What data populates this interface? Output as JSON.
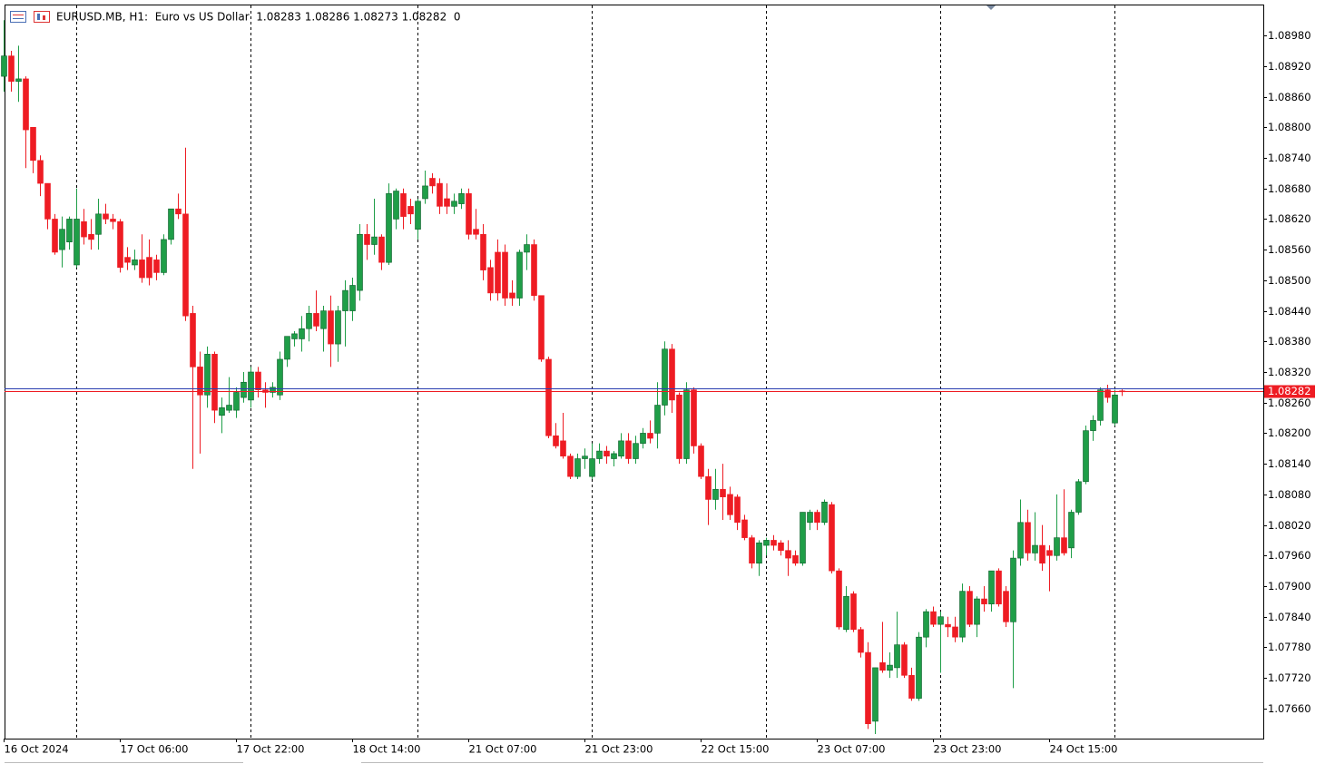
{
  "chart_data": {
    "type": "candlestick",
    "title": "EURUSD.MB, H1:  Euro vs US Dollar  1.08283 1.08286 1.08273 1.08282  0",
    "up_color": "#1f9e48",
    "down_color": "#ee1c23",
    "categories": [
      "16 Oct 2024",
      null,
      null,
      null,
      null,
      null,
      null,
      null,
      null,
      null,
      null,
      null,
      null,
      null,
      null,
      null,
      "17 Oct 06:00",
      null,
      null,
      null,
      null,
      null,
      null,
      null,
      null,
      null,
      null,
      null,
      null,
      null,
      null,
      null,
      "17 Oct 22:00",
      null,
      null,
      null,
      null,
      null,
      null,
      null,
      null,
      null,
      null,
      null,
      null,
      null,
      null,
      null,
      "18 Oct 14:00",
      null,
      null,
      null,
      null,
      null,
      null,
      null,
      null,
      null,
      null,
      null,
      null,
      null,
      null,
      null,
      "21 Oct 07:00",
      null,
      null,
      null,
      null,
      null,
      null,
      null,
      null,
      null,
      null,
      null,
      null,
      null,
      null,
      null,
      "21 Oct 23:00",
      null,
      null,
      null,
      null,
      null,
      null,
      null,
      null,
      null,
      null,
      null,
      null,
      null,
      null,
      null,
      "22 Oct 15:00",
      null,
      null,
      null,
      null,
      null,
      null,
      null,
      null,
      null,
      null,
      null,
      null,
      null,
      null,
      null,
      "23 Oct 07:00",
      null,
      null,
      null,
      null,
      null,
      null,
      null,
      null,
      null,
      null,
      null,
      null,
      null,
      null,
      null,
      "23 Oct 23:00",
      null,
      null,
      null,
      null,
      null,
      null,
      null,
      null,
      null,
      null,
      null,
      null,
      null,
      null,
      null,
      "24 Oct 15:00",
      null,
      null,
      null,
      null,
      null,
      null,
      null,
      null,
      null,
      null
    ],
    "open": [
      1.089,
      1.0894,
      1.0889,
      1.08895,
      1.088,
      1.08735,
      1.0869,
      1.0862,
      1.0856,
      1.08575,
      1.0853,
      1.08615,
      1.0859,
      1.0859,
      1.0863,
      1.0862,
      1.08615,
      1.08545,
      1.0853,
      1.0854,
      1.08545,
      1.0854,
      1.08515,
      1.0858,
      1.0864,
      1.0863,
      1.08435,
      1.0833,
      1.08275,
      1.08355,
      1.08235,
      1.08245,
      1.08245,
      1.0827,
      1.08265,
      1.0832,
      1.08285,
      1.0828,
      1.08275,
      1.08345,
      1.08385,
      1.08385,
      1.08405,
      1.08435,
      1.08405,
      1.0844,
      1.08375,
      1.0844,
      1.0844,
      1.0848,
      1.0859,
      1.0857,
      1.08585,
      1.08535,
      1.0862,
      1.0867,
      1.08645,
      1.086,
      1.0866,
      1.087,
      1.0869,
      1.0866,
      1.08645,
      1.0865,
      1.0867,
      1.086,
      1.0859,
      1.08525,
      1.08555,
      1.08555,
      1.08475,
      1.08465,
      1.08555,
      1.0857,
      1.0847,
      1.08345,
      1.08195,
      1.08185,
      1.08155,
      1.08115,
      1.0815,
      1.08115,
      1.0815,
      1.08165,
      1.0815,
      1.08155,
      1.08185,
      1.0815,
      1.0818,
      1.082,
      1.082,
      1.08255,
      1.08365,
      1.08275,
      1.0815,
      1.08285,
      1.08175,
      1.08115,
      1.0807,
      1.0809,
      1.0808,
      1.08075,
      1.0803,
      1.07995,
      1.07945,
      1.0798,
      1.0799,
      1.07985,
      1.0797,
      1.0796,
      1.07945,
      1.08025,
      1.08045,
      1.08025,
      1.0806,
      1.0793,
      1.07815,
      1.07885,
      1.07815,
      1.0777,
      1.07635,
      1.0775,
      1.07735,
      1.0774,
      1.07785,
      1.07725,
      1.0768,
      1.078,
      1.0785,
      1.07825,
      1.07825,
      1.0782,
      1.078,
      1.0789,
      1.07825,
      1.07875,
      1.07865,
      1.0793,
      1.0789,
      1.0783,
      1.07955,
      1.08025,
      1.07965,
      1.0798,
      1.0797,
      1.0796,
      1.07995,
      1.07975,
      1.08045,
      1.08105,
      1.08205,
      1.08225,
      1.08285,
      1.0822,
      1.08283
    ],
    "high": [
      1.0901,
      1.0895,
      1.0896,
      1.089,
      1.088,
      1.08745,
      1.0869,
      1.0863,
      1.08625,
      1.08625,
      1.0868,
      1.0864,
      1.0862,
      1.0866,
      1.0865,
      1.0863,
      1.0862,
      1.08565,
      1.0856,
      1.0859,
      1.0858,
      1.0855,
      1.0859,
      1.0864,
      1.0867,
      1.0876,
      1.0845,
      1.0836,
      1.0837,
      1.0836,
      1.0827,
      1.0831,
      1.0829,
      1.0832,
      1.0833,
      1.0833,
      1.083,
      1.083,
      1.0836,
      1.0839,
      1.084,
      1.0843,
      1.0845,
      1.0848,
      1.0845,
      1.0847,
      1.0845,
      1.085,
      1.08505,
      1.0861,
      1.0861,
      1.0866,
      1.0859,
      1.0869,
      1.0868,
      1.0868,
      1.0866,
      1.0866,
      1.08715,
      1.0871,
      1.087,
      1.0869,
      1.0867,
      1.0868,
      1.0868,
      1.0864,
      1.0861,
      1.0854,
      1.0858,
      1.0857,
      1.085,
      1.0856,
      1.0859,
      1.0858,
      1.0847,
      1.0835,
      1.0822,
      1.0824,
      1.0816,
      1.0816,
      1.0817,
      1.0818,
      1.0818,
      1.08175,
      1.08165,
      1.082,
      1.082,
      1.08195,
      1.0821,
      1.08225,
      1.083,
      1.0838,
      1.08375,
      1.0828,
      1.083,
      1.0829,
      1.0818,
      1.0813,
      1.0813,
      1.0814,
      1.08095,
      1.0808,
      1.0804,
      1.08,
      1.0799,
      1.07995,
      1.08,
      1.0799,
      1.0799,
      1.0797,
      1.08045,
      1.0805,
      1.0805,
      1.0807,
      1.08065,
      1.07935,
      1.079,
      1.0789,
      1.0782,
      1.0779,
      1.0774,
      1.0783,
      1.0777,
      1.0785,
      1.0779,
      1.0774,
      1.0781,
      1.07855,
      1.0786,
      1.0785,
      1.0784,
      1.0784,
      1.07905,
      1.079,
      1.0788,
      1.079,
      1.0793,
      1.07935,
      1.079,
      1.0797,
      1.0807,
      1.0805,
      1.08045,
      1.0802,
      1.0798,
      1.0808,
      1.0809,
      1.0805,
      1.0811,
      1.08215,
      1.08235,
      1.0829,
      1.08295,
      1.08285,
      1.08286
    ],
    "low": [
      1.0887,
      1.0887,
      1.0885,
      1.0872,
      1.0871,
      1.08665,
      1.086,
      1.0855,
      1.08525,
      1.0856,
      1.08525,
      1.0857,
      1.0856,
      1.0856,
      1.0861,
      1.086,
      1.08515,
      1.0852,
      1.0852,
      1.08495,
      1.0849,
      1.085,
      1.0851,
      1.0857,
      1.0862,
      1.0842,
      1.0813,
      1.0816,
      1.0825,
      1.0822,
      1.082,
      1.0824,
      1.0823,
      1.0826,
      1.0825,
      1.0827,
      1.0825,
      1.0827,
      1.08265,
      1.0833,
      1.0837,
      1.0836,
      1.0838,
      1.084,
      1.0836,
      1.0833,
      1.0834,
      1.0837,
      1.0842,
      1.0846,
      1.0854,
      1.0855,
      1.0852,
      1.0853,
      1.086,
      1.086,
      1.0861,
      1.0858,
      1.0865,
      1.0867,
      1.0863,
      1.0863,
      1.0863,
      1.0864,
      1.0858,
      1.0858,
      1.085,
      1.0846,
      1.0846,
      1.0845,
      1.0845,
      1.0845,
      1.0852,
      1.0846,
      1.0834,
      1.0819,
      1.0817,
      1.0815,
      1.0811,
      1.0811,
      1.0813,
      1.0811,
      1.0814,
      1.0814,
      1.08135,
      1.0815,
      1.0814,
      1.0814,
      1.0817,
      1.0818,
      1.0817,
      1.08235,
      1.0824,
      1.0814,
      1.0814,
      1.0816,
      1.0811,
      1.0802,
      1.0805,
      1.0803,
      1.0803,
      1.0801,
      1.0799,
      1.07935,
      1.0792,
      1.0796,
      1.0797,
      1.0796,
      1.0792,
      1.0794,
      1.0794,
      1.0801,
      1.0801,
      1.0802,
      1.07925,
      1.07815,
      1.0781,
      1.0781,
      1.0776,
      1.0762,
      1.0761,
      1.0773,
      1.0772,
      1.0772,
      1.0772,
      1.07675,
      1.07675,
      1.0778,
      1.0782,
      1.0773,
      1.078,
      1.0779,
      1.0779,
      1.0782,
      1.078,
      1.0785,
      1.0785,
      1.0786,
      1.0782,
      1.077,
      1.0794,
      1.0795,
      1.0795,
      1.0793,
      1.0789,
      1.0795,
      1.0796,
      1.07955,
      1.0804,
      1.081,
      1.08185,
      1.08215,
      1.0826,
      1.08215,
      1.08273
    ],
    "close": [
      1.0894,
      1.0889,
      1.08895,
      1.08795,
      1.08735,
      1.0869,
      1.0862,
      1.08555,
      1.086,
      1.0862,
      1.0862,
      1.08585,
      1.0858,
      1.0863,
      1.0862,
      1.08615,
      1.08525,
      1.08535,
      1.0854,
      1.08505,
      1.08505,
      1.08515,
      1.0858,
      1.0864,
      1.0863,
      1.0843,
      1.0833,
      1.08275,
      1.08355,
      1.08245,
      1.0825,
      1.08255,
      1.0828,
      1.083,
      1.0832,
      1.08285,
      1.0828,
      1.0829,
      1.08345,
      1.0839,
      1.08395,
      1.08405,
      1.08435,
      1.0841,
      1.0844,
      1.08375,
      1.0844,
      1.0848,
      1.0849,
      1.0859,
      1.0857,
      1.08585,
      1.08535,
      1.0867,
      1.08675,
      1.08625,
      1.0863,
      1.08655,
      1.08685,
      1.08685,
      1.08645,
      1.08645,
      1.08655,
      1.0867,
      1.0859,
      1.0859,
      1.0852,
      1.08475,
      1.08475,
      1.08465,
      1.08465,
      1.08555,
      1.0857,
      1.0847,
      1.08345,
      1.08195,
      1.08175,
      1.08155,
      1.08115,
      1.0815,
      1.08155,
      1.0815,
      1.08165,
      1.08155,
      1.0816,
      1.08185,
      1.0815,
      1.0818,
      1.082,
      1.0819,
      1.08255,
      1.08365,
      1.08265,
      1.0815,
      1.08285,
      1.08175,
      1.08115,
      1.0807,
      1.0809,
      1.08075,
      1.0804,
      1.08025,
      1.07995,
      1.07945,
      1.07985,
      1.0799,
      1.0798,
      1.0797,
      1.07955,
      1.07945,
      1.08045,
      1.08045,
      1.08025,
      1.08065,
      1.0793,
      1.0782,
      1.0788,
      1.07815,
      1.0777,
      1.0763,
      1.0774,
      1.07735,
      1.07745,
      1.07785,
      1.07725,
      1.0768,
      1.078,
      1.0785,
      1.07825,
      1.0784,
      1.0782,
      1.078,
      1.0789,
      1.07825,
      1.07875,
      1.07865,
      1.0793,
      1.07865,
      1.0783,
      1.07955,
      1.08025,
      1.07965,
      1.0798,
      1.07945,
      1.0796,
      1.07995,
      1.07965,
      1.08045,
      1.08105,
      1.08205,
      1.08225,
      1.08285,
      1.0827,
      1.08275,
      1.08282
    ],
    "ylim": [
      1.07601,
      1.09039
    ],
    "yticks": [
      {
        "value": 1.0898,
        "label": "1.08980"
      },
      {
        "value": 1.0892,
        "label": "1.08920"
      },
      {
        "value": 1.0886,
        "label": "1.08860"
      },
      {
        "value": 1.088,
        "label": "1.08800"
      },
      {
        "value": 1.0874,
        "label": "1.08740"
      },
      {
        "value": 1.0868,
        "label": "1.08680"
      },
      {
        "value": 1.0862,
        "label": "1.08620"
      },
      {
        "value": 1.0856,
        "label": "1.08560"
      },
      {
        "value": 1.085,
        "label": "1.08500"
      },
      {
        "value": 1.0844,
        "label": "1.08440"
      },
      {
        "value": 1.0838,
        "label": "1.08380"
      },
      {
        "value": 1.0832,
        "label": "1.08320"
      },
      {
        "value": 1.0826,
        "label": "1.08260"
      },
      {
        "value": 1.082,
        "label": "1.08200"
      },
      {
        "value": 1.0814,
        "label": "1.08140"
      },
      {
        "value": 1.0808,
        "label": "1.08080"
      },
      {
        "value": 1.0802,
        "label": "1.08020"
      },
      {
        "value": 1.0796,
        "label": "1.07960"
      },
      {
        "value": 1.079,
        "label": "1.07900"
      },
      {
        "value": 1.0784,
        "label": "1.07840"
      },
      {
        "value": 1.0778,
        "label": "1.07780"
      },
      {
        "value": 1.0772,
        "label": "1.07720"
      },
      {
        "value": 1.0766,
        "label": "1.07660"
      }
    ],
    "last_price": 1.08282,
    "last_price_color": "#ee1c23",
    "grid": false
  }
}
